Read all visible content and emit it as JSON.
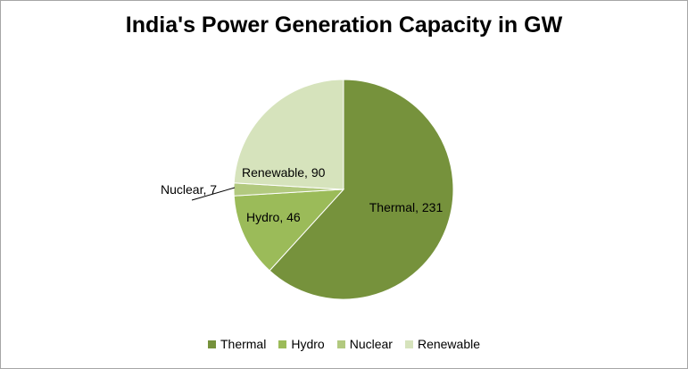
{
  "chart_data": {
    "type": "pie",
    "title": "India's Power Generation Capacity in GW",
    "categories": [
      "Thermal",
      "Hydro",
      "Nuclear",
      "Renewable"
    ],
    "values": [
      231,
      46,
      7,
      90
    ],
    "data_labels": [
      "Thermal, 231",
      "Hydro, 46",
      "Nuclear, 7",
      "Renewable, 90"
    ],
    "colors": [
      "#76923c",
      "#9bbb59",
      "#b2c97f",
      "#d6e3bc"
    ],
    "legend_position": "bottom"
  }
}
